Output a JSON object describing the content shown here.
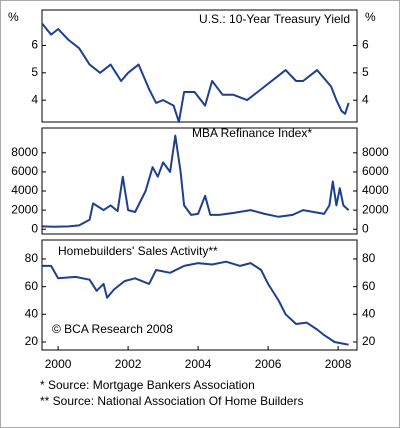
{
  "chart_data": [
    {
      "type": "line",
      "title": "U.S.: 10-Year Treasury Yield",
      "ylabel": "%",
      "color": "#1f3f8f",
      "x": [
        1999.55,
        1999.8,
        2000.0,
        2000.3,
        2000.6,
        2000.9,
        2001.2,
        2001.5,
        2001.8,
        2002.0,
        2002.3,
        2002.6,
        2002.8,
        2003.0,
        2003.3,
        2003.45,
        2003.6,
        2003.9,
        2004.2,
        2004.4,
        2004.7,
        2005.0,
        2005.4,
        2005.7,
        2005.9,
        2006.2,
        2006.5,
        2006.8,
        2007.0,
        2007.4,
        2007.6,
        2007.8,
        2007.95,
        2008.1,
        2008.2,
        2008.3
      ],
      "values": [
        6.8,
        6.4,
        6.6,
        6.2,
        5.9,
        5.3,
        5.0,
        5.3,
        4.7,
        5.0,
        5.3,
        4.4,
        3.9,
        4.0,
        3.8,
        3.2,
        4.3,
        4.3,
        3.8,
        4.7,
        4.2,
        4.2,
        4.0,
        4.3,
        4.5,
        4.8,
        5.1,
        4.7,
        4.7,
        5.1,
        4.8,
        4.5,
        4.0,
        3.6,
        3.5,
        3.9
      ],
      "xlim": [
        1999.54,
        2008.54
      ],
      "ylim": [
        3.2,
        7.3
      ],
      "yticks": [
        4,
        5,
        6
      ]
    },
    {
      "type": "line",
      "title": "MBA Refinance Index*",
      "color": "#1f3f8f",
      "x": [
        1999.55,
        1999.9,
        2000.3,
        2000.6,
        2000.9,
        2001.0,
        2001.3,
        2001.5,
        2001.7,
        2001.85,
        2002.0,
        2002.2,
        2002.5,
        2002.7,
        2002.85,
        2003.0,
        2003.2,
        2003.35,
        2003.5,
        2003.6,
        2003.8,
        2004.0,
        2004.2,
        2004.35,
        2004.6,
        2005.0,
        2005.5,
        2005.9,
        2006.3,
        2006.7,
        2007.0,
        2007.3,
        2007.6,
        2007.75,
        2007.85,
        2007.95,
        2008.05,
        2008.15,
        2008.3
      ],
      "values": [
        300,
        250,
        300,
        400,
        1000,
        2700,
        2000,
        2500,
        1900,
        5500,
        2000,
        1800,
        4000,
        6500,
        5500,
        7000,
        6000,
        9800,
        6000,
        2500,
        1500,
        1600,
        3500,
        1500,
        1500,
        1700,
        2000,
        1600,
        1300,
        1500,
        2000,
        1800,
        1600,
        2500,
        5000,
        2500,
        4300,
        2500,
        2000
      ],
      "xlim": [
        1999.54,
        2008.54
      ],
      "ylim": [
        -500,
        10600
      ],
      "yticks": [
        0,
        2000,
        4000,
        6000,
        8000
      ]
    },
    {
      "type": "line",
      "title": "Homebuilders' Sales Activity**",
      "annotation": "© BCA Research 2008",
      "color": "#1f3f8f",
      "x": [
        1999.55,
        1999.8,
        2000.0,
        2000.5,
        2000.9,
        2001.1,
        2001.3,
        2001.4,
        2001.6,
        2001.9,
        2002.2,
        2002.6,
        2002.8,
        2003.2,
        2003.6,
        2004.0,
        2004.4,
        2004.8,
        2005.2,
        2005.5,
        2005.8,
        2006.0,
        2006.3,
        2006.5,
        2006.8,
        2007.1,
        2007.4,
        2007.6,
        2007.9,
        2008.1,
        2008.3
      ],
      "values": [
        75,
        75,
        66,
        67,
        65,
        57,
        62,
        52,
        58,
        64,
        66,
        62,
        72,
        70,
        75,
        77,
        76,
        78,
        75,
        77,
        72,
        62,
        50,
        40,
        33,
        34,
        29,
        25,
        20,
        19,
        18
      ],
      "xlim": [
        1999.54,
        2008.54
      ],
      "ylim": [
        14.2,
        93.7
      ],
      "yticks": [
        20,
        40,
        60,
        80
      ],
      "xticks": [
        2000,
        2002,
        2004,
        2006,
        2008
      ]
    }
  ],
  "footnotes": [
    "*  Source: Mortgage Bankers Association",
    "** Source: National Association Of Home Builders"
  ]
}
